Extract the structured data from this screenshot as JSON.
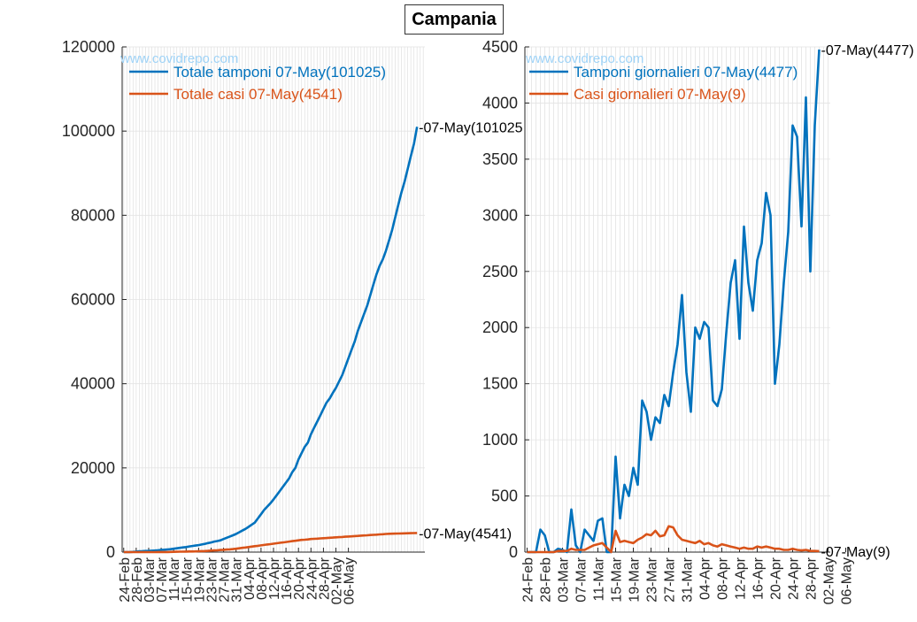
{
  "title": "Campania",
  "watermark": "www.covidrepo.com",
  "colors": {
    "blue": "#0072BD",
    "orange": "#D95319",
    "grid": "#e3e3e3",
    "axis": "#262626"
  },
  "chart_data": [
    {
      "type": "line",
      "x_tick_labels": [
        "24-Feb",
        "28-Feb",
        "03-Mar",
        "07-Mar",
        "11-Mar",
        "15-Mar",
        "19-Mar",
        "23-Mar",
        "27-Mar",
        "31-Mar",
        "04-Apr",
        "08-Apr",
        "12-Apr",
        "16-Apr",
        "20-Apr",
        "24-Apr",
        "28-Apr",
        "02-May",
        "06-May"
      ],
      "ylim": [
        0,
        120000
      ],
      "y_ticks": [
        0,
        20000,
        40000,
        60000,
        80000,
        100000,
        120000
      ],
      "grid": true,
      "legend_position": "top-left",
      "series": [
        {
          "name": "Totale tamponi 07-May(101025)",
          "color": "blue",
          "end_label": "-07-May(101025",
          "values": [
            0,
            0,
            25,
            71,
            120,
            200,
            240,
            270,
            300,
            330,
            380,
            450,
            520,
            560,
            620,
            700,
            800,
            900,
            1000,
            1110,
            1200,
            1350,
            1450,
            1550,
            1660,
            1800,
            1950,
            2150,
            2300,
            2500,
            2620,
            2800,
            3100,
            3400,
            3700,
            4000,
            4300,
            4700,
            5100,
            5500,
            6000,
            6500,
            7000,
            8000,
            9000,
            10000,
            10800,
            11600,
            12500,
            13500,
            14500,
            15500,
            16500,
            17500,
            19000,
            20000,
            22000,
            23500,
            25000,
            26000,
            28000,
            29500,
            31000,
            32500,
            34000,
            35500,
            36500,
            37800,
            39000,
            40500,
            42000,
            44000,
            46000,
            48000,
            50000,
            52500,
            54500,
            56500,
            58500,
            61000,
            63500,
            66000,
            68000,
            69500,
            71500,
            74000,
            76500,
            79500,
            82500,
            85500,
            88000,
            91000,
            94000,
            97000,
            101025
          ]
        },
        {
          "name": "Totale casi 07-May(4541)",
          "color": "orange",
          "end_label": "-07-May(4541)",
          "values": [
            0,
            0,
            0,
            0,
            0,
            0,
            0,
            0,
            2,
            5,
            10,
            15,
            20,
            25,
            30,
            40,
            60,
            80,
            100,
            110,
            120,
            140,
            150,
            170,
            200,
            230,
            260,
            300,
            350,
            400,
            450,
            500,
            550,
            600,
            650,
            720,
            800,
            900,
            1000,
            1100,
            1200,
            1300,
            1400,
            1500,
            1600,
            1700,
            1800,
            1900,
            2000,
            2100,
            2200,
            2300,
            2400,
            2500,
            2600,
            2700,
            2800,
            2900,
            2950,
            3000,
            3100,
            3150,
            3200,
            3250,
            3300,
            3350,
            3400,
            3450,
            3500,
            3550,
            3600,
            3650,
            3700,
            3750,
            3800,
            3850,
            3900,
            3950,
            4000,
            4050,
            4100,
            4150,
            4200,
            4250,
            4300,
            4350,
            4380,
            4400,
            4420,
            4440,
            4460,
            4480,
            4500,
            4520,
            4541
          ]
        }
      ]
    },
    {
      "type": "line",
      "x_tick_labels": [
        "24-Feb",
        "28-Feb",
        "03-Mar",
        "07-Mar",
        "11-Mar",
        "15-Mar",
        "19-Mar",
        "23-Mar",
        "27-Mar",
        "31-Mar",
        "04-Apr",
        "08-Apr",
        "12-Apr",
        "16-Apr",
        "20-Apr",
        "24-Apr",
        "28-Apr",
        "02-May",
        "06-May"
      ],
      "ylim": [
        0,
        4500
      ],
      "y_ticks": [
        0,
        500,
        1000,
        1500,
        2000,
        2500,
        3000,
        3500,
        4000,
        4500
      ],
      "grid": true,
      "legend_position": "top-left",
      "series": [
        {
          "name": "Tamponi giornalieri 07-May(4477)",
          "color": "blue",
          "end_label": "-07-May(4477)",
          "values": [
            0,
            0,
            0,
            200,
            150,
            0,
            0,
            30,
            20,
            0,
            380,
            60,
            0,
            200,
            150,
            100,
            280,
            300,
            0,
            0,
            850,
            300,
            600,
            500,
            750,
            600,
            1350,
            1250,
            1000,
            1200,
            1150,
            1400,
            1300,
            1600,
            1850,
            2290,
            1600,
            1250,
            2000,
            1900,
            2050,
            2000,
            1350,
            1300,
            1450,
            1950,
            2400,
            2600,
            1900,
            2900,
            2400,
            2150,
            2600,
            2750,
            3200,
            3000,
            1500,
            1850,
            2400,
            2850,
            3800,
            3700,
            2900,
            4050,
            2500,
            3800,
            4477
          ]
        },
        {
          "name": "Casi giornalieri 07-May(9)",
          "color": "orange",
          "end_label": "-07-May(9)",
          "values": [
            0,
            0,
            0,
            0,
            0,
            0,
            0,
            10,
            10,
            10,
            30,
            20,
            20,
            20,
            40,
            60,
            70,
            80,
            40,
            0,
            190,
            90,
            100,
            90,
            80,
            110,
            130,
            160,
            150,
            190,
            140,
            150,
            230,
            220,
            150,
            110,
            100,
            90,
            80,
            100,
            70,
            80,
            60,
            50,
            70,
            60,
            50,
            40,
            30,
            40,
            30,
            30,
            50,
            40,
            50,
            40,
            30,
            30,
            20,
            20,
            30,
            20,
            15,
            20,
            10,
            10,
            9
          ]
        }
      ]
    }
  ]
}
